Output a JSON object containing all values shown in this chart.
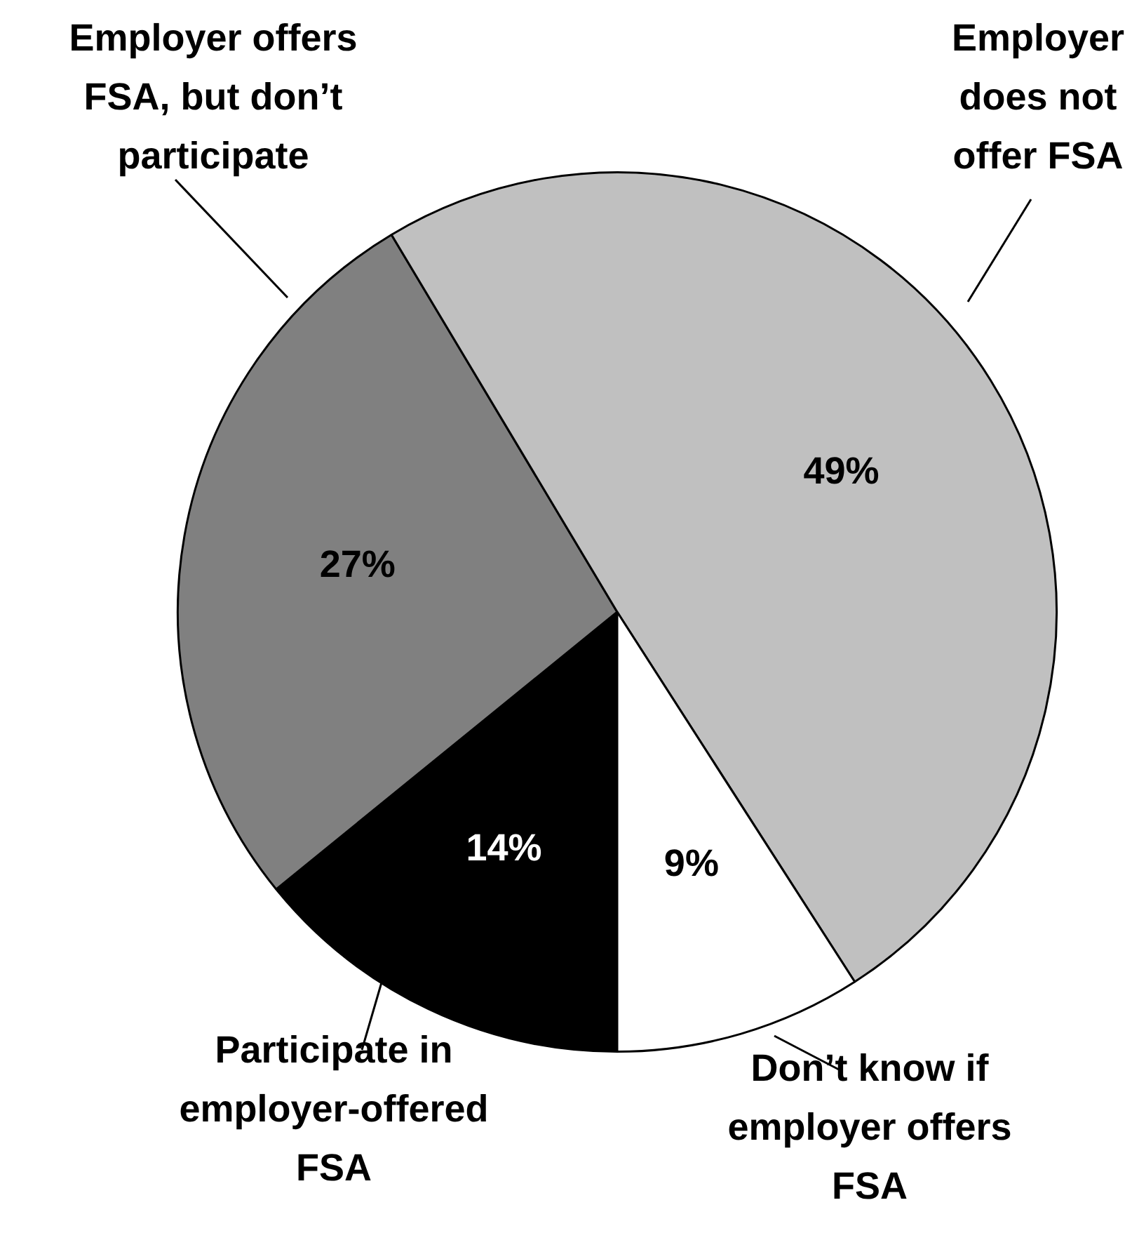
{
  "chart_data": {
    "type": "pie",
    "categories": [
      "Participate in employer-offered FSA",
      "Employer offers FSA, but don’t participate",
      "Employer does not offer FSA",
      "Don’t know if employer offers FSA"
    ],
    "values": [
      14,
      27,
      49,
      9
    ],
    "colors": [
      "#000000",
      "#808080",
      "#c0c0c0",
      "#ffffff"
    ],
    "value_labels": [
      "14%",
      "27%",
      "49%",
      "9%"
    ],
    "legend": false
  }
}
